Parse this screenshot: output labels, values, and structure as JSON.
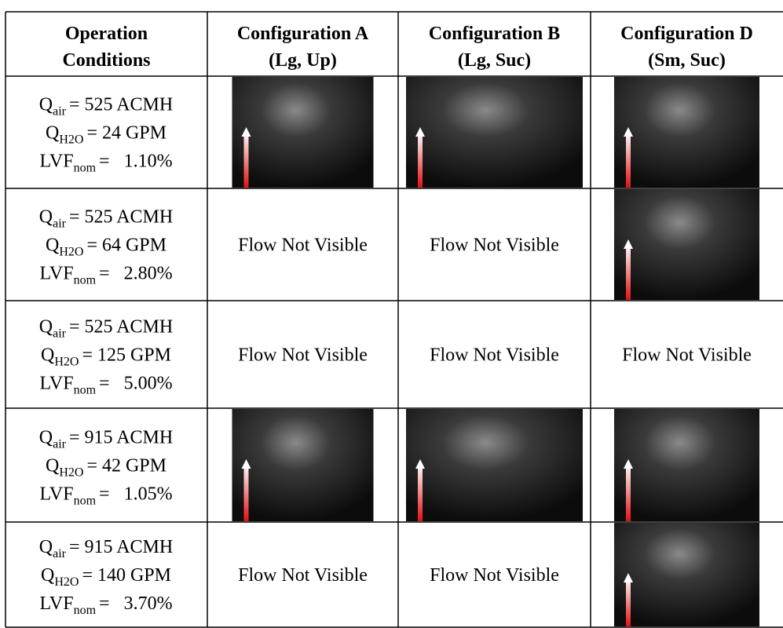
{
  "table": {
    "header": [
      [
        "Operation",
        "Conditions"
      ],
      [
        "Configuration A",
        "(Lg, Up)"
      ],
      [
        "Configuration B",
        "(Lg, Suc)"
      ],
      [
        "Configuration D",
        "(Sm, Suc)"
      ]
    ],
    "rows": [
      {
        "conditions": [
          {
            "symbol": "Q",
            "sub": "air",
            "value": "= 525 ACMH"
          },
          {
            "symbol": "Q",
            "sub": "H2O",
            "value": "= 24 GPM"
          },
          {
            "symbol": "LVF",
            "sub": "nom",
            "value": "=   1.10%"
          }
        ],
        "cells": [
          null,
          null,
          null
        ]
      },
      {
        "conditions": [
          {
            "symbol": "Q",
            "sub": "air",
            "value": "= 525 ACMH"
          },
          {
            "symbol": "Q",
            "sub": "H2O",
            "value": "= 64 GPM"
          },
          {
            "symbol": "LVF",
            "sub": "nom",
            "value": "=   2.80%"
          }
        ],
        "cells": [
          "Flow Not Visible",
          "Flow Not Visible",
          null
        ]
      },
      {
        "conditions": [
          {
            "symbol": "Q",
            "sub": "air",
            "value": "= 525 ACMH"
          },
          {
            "symbol": "Q",
            "sub": "H2O",
            "value": "= 125 GPM"
          },
          {
            "symbol": "LVF",
            "sub": "nom",
            "value": "=   5.00%"
          }
        ],
        "cells": [
          "Flow Not Visible",
          "Flow Not Visible",
          "Flow Not Visible"
        ]
      },
      {
        "conditions": [
          {
            "symbol": "Q",
            "sub": "air",
            "value": "= 915 ACMH"
          },
          {
            "symbol": "Q",
            "sub": "H2O",
            "value": "= 42 GPM"
          },
          {
            "symbol": "LVF",
            "sub": "nom",
            "value": "=   1.05%"
          }
        ],
        "cells": [
          null,
          null,
          null
        ]
      },
      {
        "conditions": [
          {
            "symbol": "Q",
            "sub": "air",
            "value": "= 915 ACMH"
          },
          {
            "symbol": "Q",
            "sub": "H2O",
            "value": "= 140 GPM"
          },
          {
            "symbol": "LVF",
            "sub": "nom",
            "value": "=   3.70%"
          }
        ],
        "cells": [
          "Flow Not Visible",
          "Flow Not Visible",
          null
        ]
      }
    ]
  }
}
